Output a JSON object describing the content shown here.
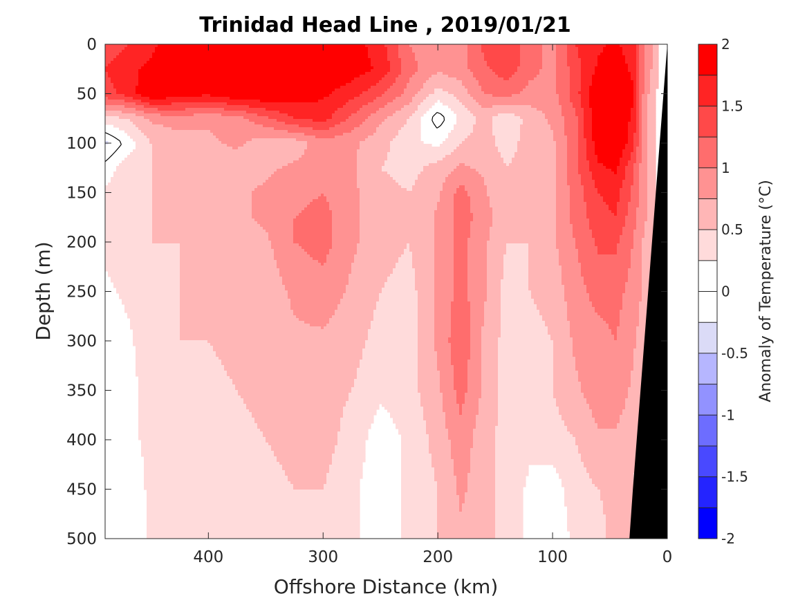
{
  "chart_data": {
    "type": "heatmap",
    "title": "Trinidad Head Line , 2019/01/21",
    "xlabel": "Offshore Distance (km)",
    "ylabel": "Depth (m)",
    "colorbar_label": "Anomaly of Temperature (°C)",
    "x_reversed": true,
    "y_reversed": true,
    "xlim": [
      490,
      0
    ],
    "ylim": [
      0,
      500
    ],
    "x_ticks": [
      400,
      300,
      200,
      100,
      0
    ],
    "y_ticks": [
      0,
      50,
      100,
      150,
      200,
      250,
      300,
      350,
      400,
      450,
      500
    ],
    "clim": [
      -2,
      2
    ],
    "colorbar_ticks": [
      2,
      1.5,
      1,
      0.5,
      0,
      -0.5,
      -1,
      -1.5,
      -2
    ],
    "levels": [
      -2,
      -1.75,
      -1.5,
      -1.25,
      -1,
      -0.75,
      -0.5,
      -0.25,
      0,
      0.25,
      0.5,
      0.75,
      1,
      1.25,
      1.5,
      1.75,
      2
    ],
    "level_colors": [
      "#0000ff",
      "#2424ff",
      "#4949ff",
      "#6d6dff",
      "#9292ff",
      "#b6b6ff",
      "#dbdbf7",
      "#ffffff",
      "#ffffff",
      "#ffdbdb",
      "#ffb6b6",
      "#ff9292",
      "#ff6d6d",
      "#ff4949",
      "#ff2424",
      "#ff0000"
    ],
    "x_stations": [
      490,
      470,
      450,
      425,
      400,
      375,
      350,
      325,
      300,
      275,
      250,
      225,
      200,
      180,
      160,
      140,
      120,
      100,
      80,
      60,
      45,
      30,
      20,
      10,
      0
    ],
    "y_depths": [
      0,
      25,
      50,
      75,
      100,
      125,
      150,
      175,
      200,
      250,
      300,
      350,
      400,
      450,
      500
    ],
    "z": [
      [
        1.3,
        1.5,
        1.7,
        1.9,
        2.0,
        2.0,
        2.0,
        2.0,
        2.0,
        1.9,
        1.6,
        1.0,
        0.8,
        0.9,
        1.3,
        1.5,
        1.1,
        0.9,
        1.5,
        1.7,
        1.8,
        1.6,
        1.0,
        0.6,
        0.3
      ],
      [
        1.5,
        1.7,
        1.8,
        1.9,
        2.0,
        2.0,
        2.0,
        2.0,
        2.0,
        1.9,
        1.7,
        1.1,
        0.8,
        0.9,
        1.2,
        1.4,
        1.1,
        0.9,
        1.4,
        1.8,
        1.9,
        1.7,
        1.0,
        0.6,
        0.3
      ],
      [
        1.4,
        1.6,
        2.0,
        1.9,
        1.8,
        2.0,
        2.0,
        1.9,
        1.8,
        1.6,
        1.3,
        0.9,
        0.4,
        0.6,
        1.0,
        1.1,
        0.9,
        0.9,
        1.4,
        2.0,
        2.0,
        1.8,
        0.9,
        0.5,
        0.3
      ],
      [
        0.4,
        0.5,
        0.8,
        0.9,
        0.8,
        0.9,
        1.2,
        1.5,
        1.6,
        1.2,
        0.8,
        0.5,
        -0.15,
        0.3,
        0.6,
        0.3,
        0.6,
        0.8,
        1.2,
        2.0,
        2.0,
        1.7,
        0.8,
        0.5,
        0.3
      ],
      [
        -0.3,
        0.1,
        0.5,
        0.6,
        0.7,
        0.8,
        0.6,
        0.6,
        0.9,
        0.8,
        0.6,
        0.3,
        0.2,
        0.5,
        0.6,
        0.4,
        0.6,
        0.7,
        1.2,
        1.9,
        2.0,
        1.6,
        0.8,
        0.5,
        0.3
      ],
      [
        0.1,
        0.4,
        0.5,
        0.6,
        0.6,
        0.6,
        0.7,
        0.8,
        0.9,
        0.8,
        0.5,
        0.4,
        0.6,
        0.8,
        0.7,
        0.5,
        0.6,
        0.7,
        1.2,
        1.7,
        1.8,
        1.3,
        0.8,
        0.5,
        0.3
      ],
      [
        0.3,
        0.4,
        0.5,
        0.6,
        0.6,
        0.7,
        0.8,
        0.9,
        1.0,
        0.8,
        0.6,
        0.5,
        0.7,
        1.1,
        0.8,
        0.5,
        0.6,
        0.7,
        1.1,
        1.5,
        1.6,
        1.2,
        0.8,
        0.5,
        0.3
      ],
      [
        0.3,
        0.4,
        0.5,
        0.6,
        0.6,
        0.7,
        0.8,
        1.0,
        1.1,
        0.8,
        0.6,
        0.5,
        0.8,
        1.1,
        0.9,
        0.5,
        0.6,
        0.7,
        1.1,
        1.4,
        1.5,
        1.1,
        0.8,
        0.5,
        0.3
      ],
      [
        0.3,
        0.4,
        0.5,
        0.5,
        0.6,
        0.6,
        0.7,
        1.0,
        1.1,
        0.8,
        0.6,
        0.5,
        0.8,
        1.1,
        0.8,
        0.5,
        0.5,
        0.7,
        1.0,
        1.3,
        1.3,
        1.0,
        0.7,
        0.5,
        0.3
      ],
      [
        0.2,
        0.3,
        0.4,
        0.5,
        0.5,
        0.6,
        0.6,
        0.8,
        0.9,
        0.7,
        0.5,
        0.4,
        0.8,
        1.1,
        0.8,
        0.4,
        0.5,
        0.6,
        0.9,
        1.1,
        1.1,
        0.9,
        0.7,
        0.5,
        0.3
      ],
      [
        0.1,
        0.2,
        0.4,
        0.5,
        0.5,
        0.6,
        0.6,
        0.7,
        0.7,
        0.6,
        0.4,
        0.4,
        0.8,
        1.2,
        0.7,
        0.4,
        0.4,
        0.5,
        0.8,
        0.9,
        1.0,
        0.8,
        0.6,
        0.4,
        0.3
      ],
      [
        0.1,
        0.2,
        0.3,
        0.4,
        0.4,
        0.5,
        0.6,
        0.6,
        0.6,
        0.5,
        0.3,
        0.4,
        0.7,
        1.1,
        0.7,
        0.4,
        0.4,
        0.5,
        0.7,
        0.9,
        0.9,
        0.7,
        0.5,
        0.4,
        0.3
      ],
      [
        0.1,
        0.2,
        0.3,
        0.4,
        0.4,
        0.4,
        0.5,
        0.6,
        0.6,
        0.4,
        0.1,
        0.3,
        0.6,
        0.9,
        0.6,
        0.4,
        0.3,
        0.4,
        0.5,
        0.7,
        0.7,
        0.6,
        0.4,
        0.3,
        0.3
      ],
      [
        0.1,
        0.1,
        0.3,
        0.4,
        0.4,
        0.4,
        0.4,
        0.5,
        0.5,
        0.3,
        0.1,
        0.3,
        0.5,
        0.8,
        0.6,
        0.4,
        0.2,
        0.1,
        0.4,
        0.5,
        0.6,
        0.5,
        0.3,
        0.0,
        0.3
      ],
      [
        0.1,
        0.1,
        0.3,
        0.3,
        0.3,
        0.3,
        0.4,
        0.4,
        0.4,
        0.3,
        0.1,
        0.3,
        0.5,
        0.7,
        0.6,
        0.4,
        0.2,
        0.1,
        0.3,
        0.4,
        0.6,
        0.5,
        0.3,
        0.2,
        0.3
      ]
    ],
    "bathymetry": [
      [
        0,
        0
      ],
      [
        10,
        150
      ],
      [
        20,
        300
      ],
      [
        30,
        450
      ],
      [
        33,
        500
      ]
    ],
    "bathymetry_color": "#000000",
    "zero_contour_color": "#000000"
  }
}
